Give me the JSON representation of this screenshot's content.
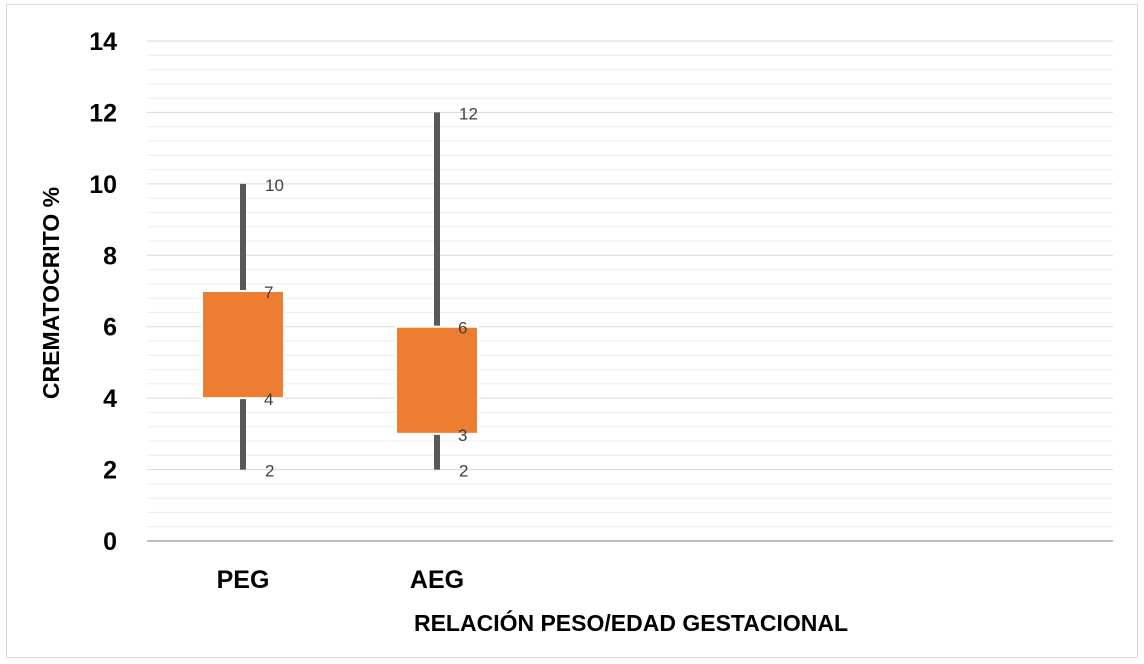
{
  "chart_data": {
    "type": "box",
    "xlabel": "RELACIÓN PESO/EDAD GESTACIONAL",
    "ylabel": "CREMATOCRITO %",
    "ylim": [
      0,
      14
    ],
    "yticks": [
      0,
      2,
      4,
      6,
      8,
      10,
      12,
      14
    ],
    "minor_grid_step": 0.4,
    "grid": true,
    "categories": [
      "PEG",
      "AEG"
    ],
    "series": [
      {
        "category": "PEG",
        "min": 2,
        "q1": 4,
        "q3": 7,
        "max": 10
      },
      {
        "category": "AEG",
        "min": 2,
        "q1": 3,
        "q3": 6,
        "max": 12
      }
    ],
    "colors": {
      "box": "#ed7d31",
      "whisker": "#595959",
      "grid_major": "#d9d9d9",
      "grid_minor": "#ececec"
    }
  }
}
